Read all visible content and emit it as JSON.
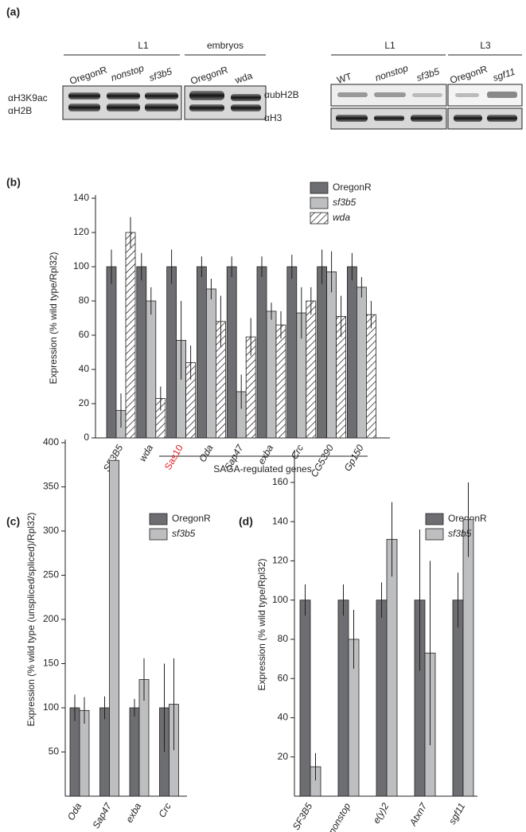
{
  "blot": {
    "label": "(a)",
    "left": {
      "groups": [
        "L1",
        "embryos"
      ],
      "samples": [
        "OregonR",
        "nonstop",
        "sf3b5",
        "OregonR",
        "wda"
      ],
      "rows": [
        "αH3K9ac",
        "αH2B"
      ]
    },
    "right": {
      "groups": [
        "L1",
        "L3"
      ],
      "samples": [
        "WT",
        "nonstop",
        "sf3b5",
        "OregonR",
        "sgf11"
      ],
      "rows": [
        "αubH2B",
        "αH3"
      ]
    }
  },
  "chart_data": [
    {
      "type": "bar",
      "label": "(b)",
      "ylabel": "Expression (% wild type/Rpl32)",
      "categories": [
        "SF3B5",
        "wda",
        "Sas10",
        "Oda",
        "Sap47",
        "exba",
        "Crc",
        "CG5390",
        "Gp150"
      ],
      "category_label_colors": [
        "#231f20",
        "#231f20",
        "#e31e24",
        "#231f20",
        "#231f20",
        "#231f20",
        "#231f20",
        "#231f20",
        "#231f20"
      ],
      "category_label_styles": [
        "italic",
        "italic",
        "normal",
        "italic",
        "italic",
        "italic",
        "italic",
        "italic",
        "italic"
      ],
      "series": [
        {
          "name": "OregonR",
          "color": "#6d6e71",
          "values": [
            100,
            100,
            100,
            100,
            100,
            100,
            100,
            100,
            100
          ],
          "errors": [
            10,
            8,
            10,
            6,
            6,
            6,
            7,
            10,
            8
          ]
        },
        {
          "name": "sf3b5",
          "color": "#bcbec0",
          "values": [
            16,
            80,
            57,
            87,
            27,
            74,
            73,
            97,
            88
          ],
          "errors": [
            10,
            8,
            23,
            6,
            10,
            5,
            15,
            12,
            6
          ]
        },
        {
          "name": "wda",
          "color": "#ffffff",
          "pattern": "hatch",
          "values": [
            120,
            23,
            44,
            68,
            59,
            66,
            80,
            71,
            72
          ],
          "errors": [
            9,
            7,
            10,
            15,
            11,
            8,
            8,
            12,
            8
          ]
        }
      ],
      "ylim": [
        0,
        140
      ],
      "yticks": [
        0,
        20,
        40,
        60,
        80,
        100,
        120,
        140
      ],
      "annotation": "SAGA-regulated genes",
      "legend": "top-right"
    },
    {
      "type": "bar",
      "label": "(c)",
      "ylabel": "Expression (% wild type (unspliced/spliced)/Rpl32)",
      "categories": [
        "Oda",
        "Sap47",
        "exba",
        "Crc"
      ],
      "series": [
        {
          "name": "OregonR",
          "color": "#6d6e71",
          "values": [
            100,
            100,
            100,
            100
          ],
          "errors": [
            15,
            13,
            10,
            50
          ]
        },
        {
          "name": "sf3b5",
          "color": "#bcbec0",
          "values": [
            97,
            380,
            132,
            104
          ],
          "errors": [
            15,
            null,
            24,
            52
          ]
        }
      ],
      "ylim": [
        0,
        400
      ],
      "yticks": [
        50,
        100,
        150,
        200,
        250,
        300,
        350,
        400
      ],
      "legend": "top-right"
    },
    {
      "type": "bar",
      "label": "(d)",
      "ylabel": "Expression (% wild type/Rpl32)",
      "categories": [
        "SF3B5",
        "nonstop",
        "e(y)2",
        "Atxn7",
        "sgf11"
      ],
      "series": [
        {
          "name": "OregonR",
          "color": "#6d6e71",
          "values": [
            100,
            100,
            100,
            100,
            100
          ],
          "errors": [
            8,
            8,
            9,
            36,
            14
          ]
        },
        {
          "name": "sf3b5",
          "color": "#bcbec0",
          "values": [
            15,
            80,
            131,
            73,
            141
          ],
          "errors": [
            7,
            15,
            19,
            47,
            19
          ]
        }
      ],
      "ylim": [
        0,
        175
      ],
      "yticks": [
        20,
        40,
        60,
        80,
        100,
        120,
        140,
        160
      ],
      "legend": "top-right"
    }
  ]
}
